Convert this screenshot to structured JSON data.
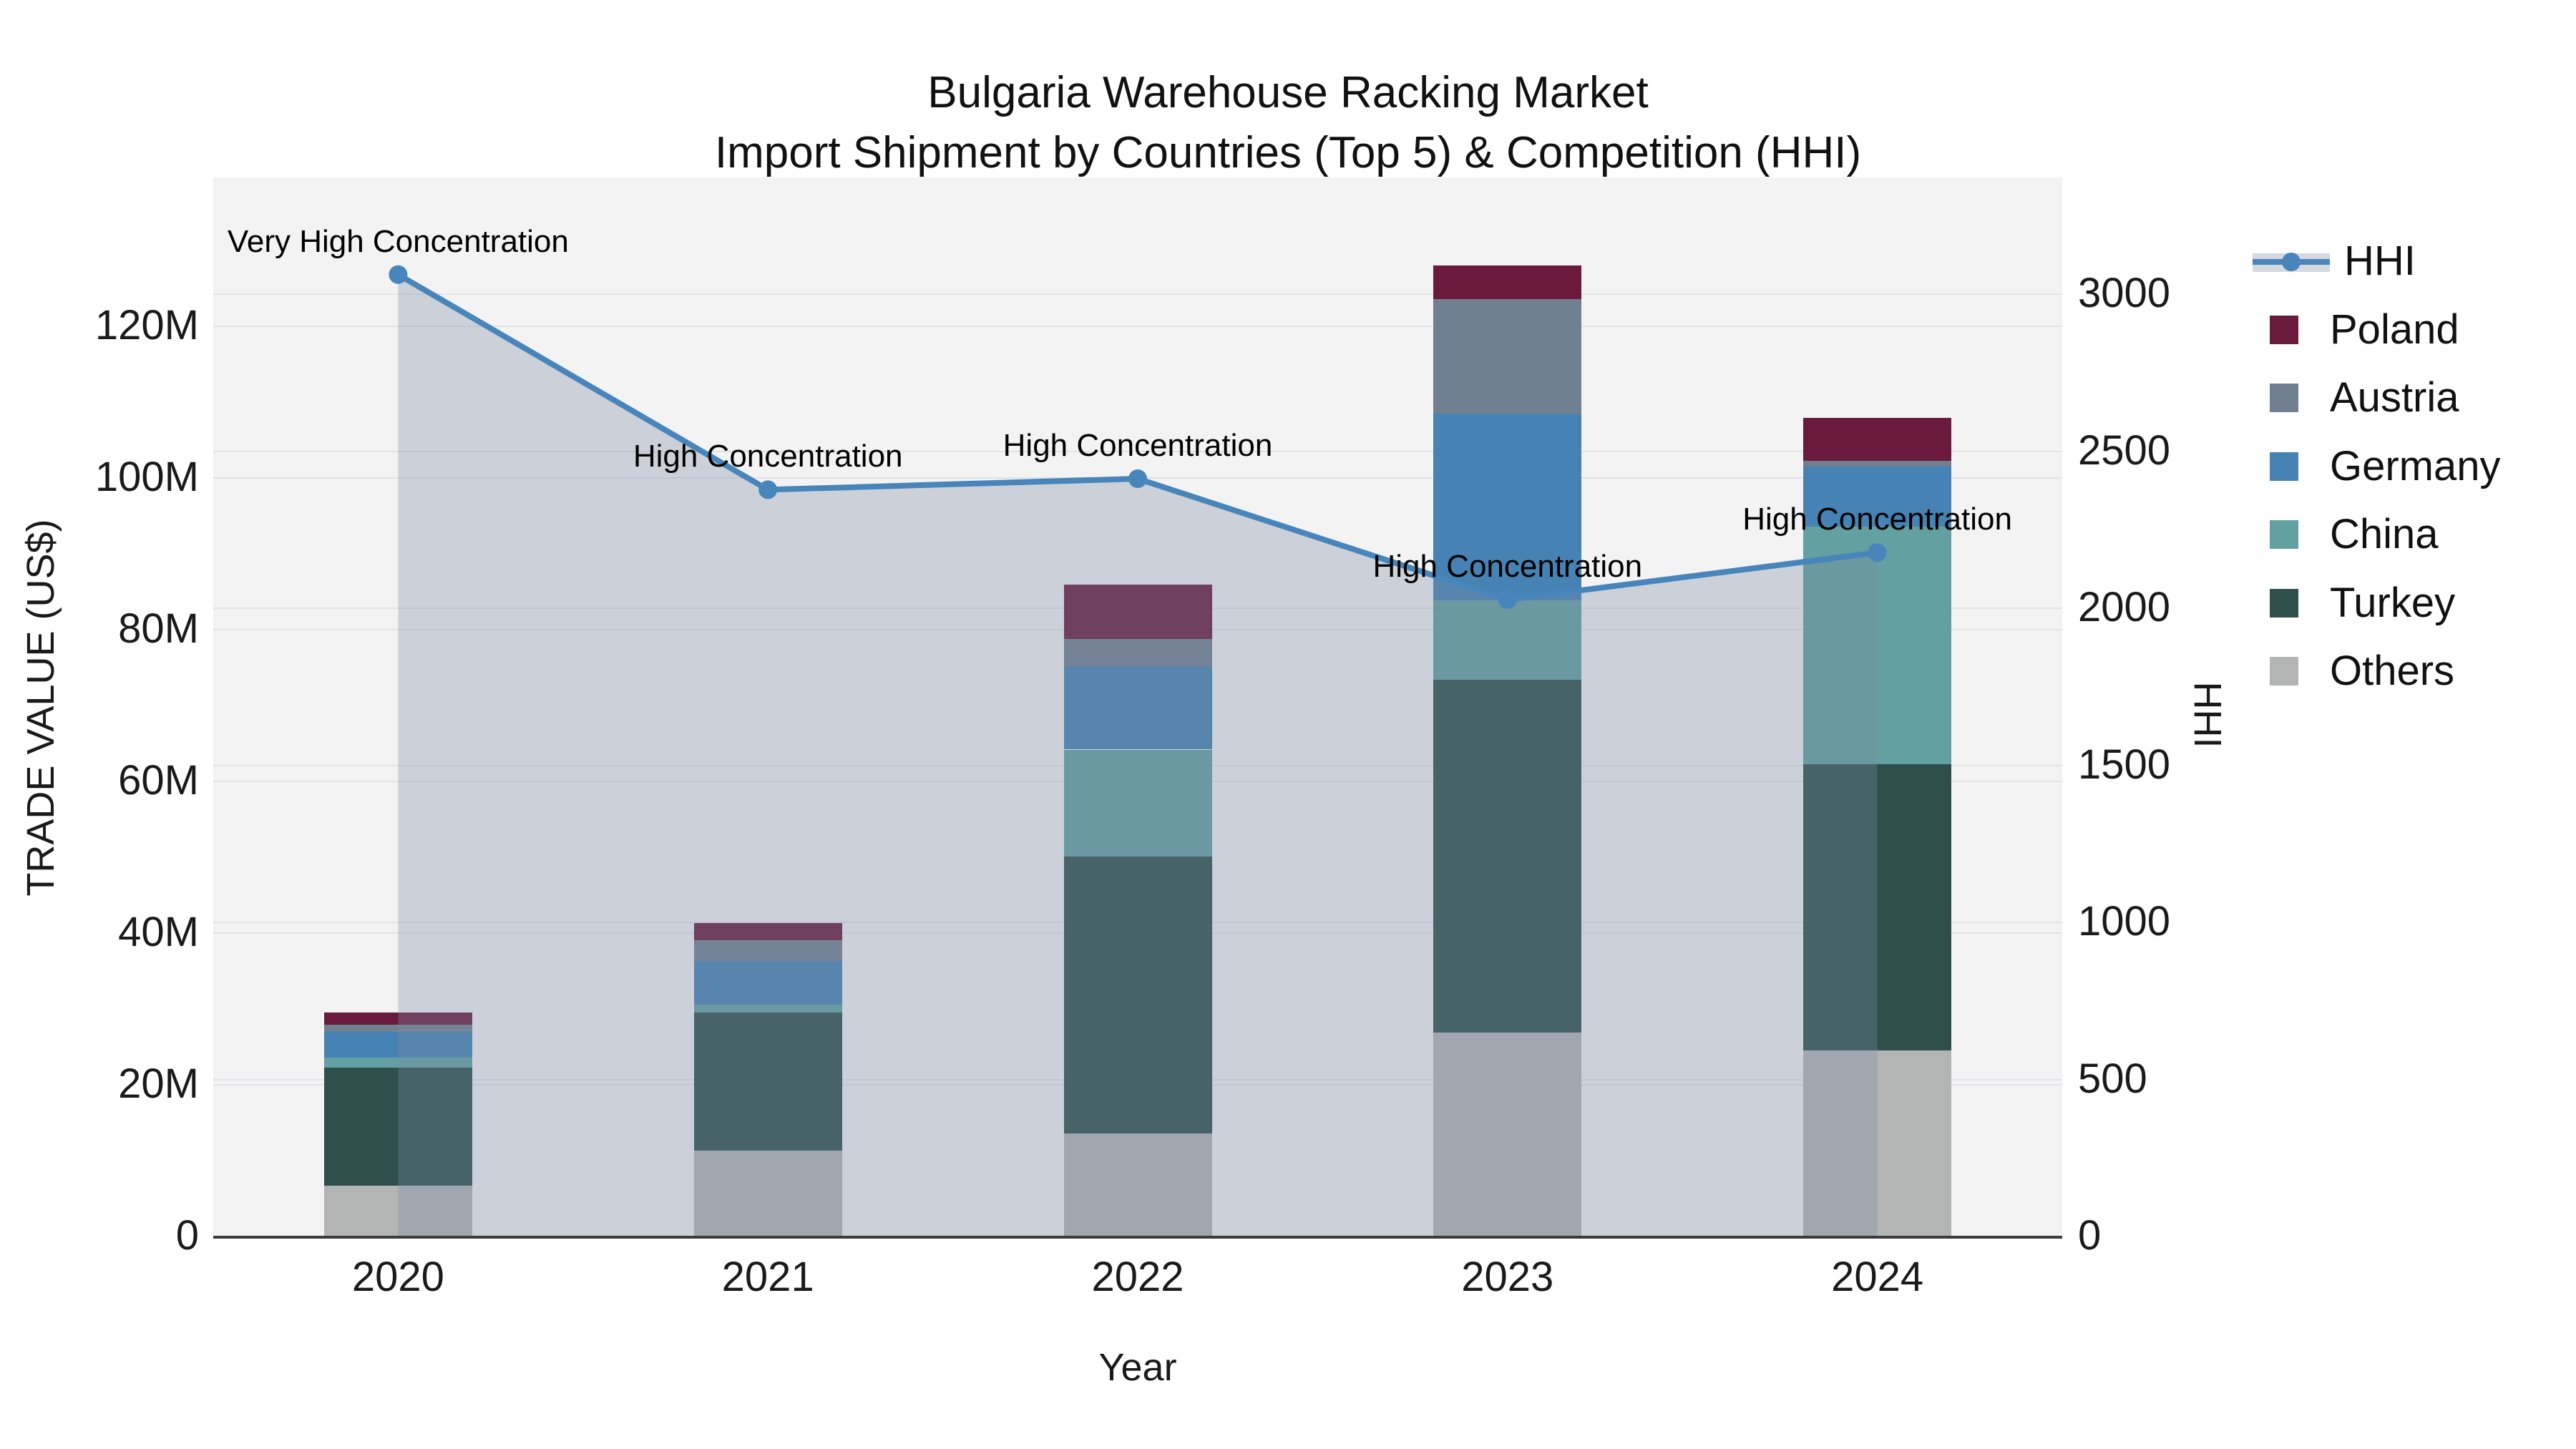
{
  "title": {
    "line1": "Bulgaria Warehouse Racking Market",
    "line2": "Import Shipment by Countries (Top 5) & Competition (HHI)"
  },
  "colors": {
    "hhi_line": "#4785BA",
    "area_fill": "rgba(124,140,165,0.33)",
    "plot_background": "#f3f3f4",
    "gridline": "#e2e2e6",
    "axis_line": "#3b3b3b",
    "poland": "#691A3D",
    "austria": "#708090",
    "germany": "#4682B4",
    "china": "#63A0A2",
    "turkey": "#2E4F4B",
    "others": "#B2B5B3"
  },
  "chart_data": {
    "type": "bar",
    "subtype": "stacked-bar-with-line",
    "title": "Bulgaria Warehouse Racking Market — Import Shipment by Countries (Top 5) & Competition (HHI)",
    "categories": [
      "2020",
      "2021",
      "2022",
      "2023",
      "2024"
    ],
    "bar_unit": "million US$",
    "series": [
      {
        "name": "Others",
        "color": "#B2B5B3",
        "values": [
          6.6,
          11.2,
          13.5,
          26.8,
          24.4
        ]
      },
      {
        "name": "Turkey",
        "color": "#2E4F4B",
        "values": [
          15.6,
          18.2,
          36.5,
          46.5,
          37.8
        ]
      },
      {
        "name": "China",
        "color": "#63A0A2",
        "values": [
          1.3,
          1.1,
          14.1,
          10.5,
          31.3
        ]
      },
      {
        "name": "Germany",
        "color": "#4682B4",
        "values": [
          3.4,
          5.7,
          11.0,
          24.6,
          7.9
        ]
      },
      {
        "name": "Austria",
        "color": "#708090",
        "values": [
          0.9,
          2.8,
          3.6,
          15.1,
          0.8
        ]
      },
      {
        "name": "Poland",
        "color": "#691A3D",
        "values": [
          1.6,
          2.2,
          7.2,
          4.4,
          5.6
        ]
      }
    ],
    "bar_totals": [
      29.4,
      41.2,
      85.9,
      127.9,
      107.8
    ],
    "line_series": {
      "name": "HHI",
      "color": "#4785BA",
      "values": [
        3060,
        2375,
        2410,
        2025,
        2175
      ],
      "annotations": [
        {
          "text": "Very High Concentration"
        },
        {
          "text": "High Concentration"
        },
        {
          "text": "High Concentration"
        },
        {
          "text": "High Concentration"
        },
        {
          "text": "High Concentration"
        }
      ]
    },
    "x": {
      "title": "Year"
    },
    "y_left": {
      "title": "TRADE VALUE (US$)",
      "tick_labels": [
        "0",
        "20M",
        "40M",
        "60M",
        "80M",
        "100M",
        "120M"
      ],
      "tick_values": [
        0,
        20,
        40,
        60,
        80,
        100,
        120
      ],
      "range": [
        0,
        139.5
      ]
    },
    "y_right": {
      "title": "HHI",
      "tick_labels": [
        "0",
        "500",
        "1000",
        "1500",
        "2000",
        "2500",
        "3000"
      ],
      "tick_values": [
        0,
        500,
        1000,
        1500,
        2000,
        2500,
        3000
      ],
      "range": [
        0,
        3370
      ]
    },
    "grid": true,
    "legend_position": "right"
  },
  "legend": {
    "items": [
      {
        "label": "HHI",
        "color": "#4785BA",
        "type": "line"
      },
      {
        "label": "Poland",
        "color": "#691A3D",
        "type": "square"
      },
      {
        "label": "Austria",
        "color": "#708090",
        "type": "square"
      },
      {
        "label": "Germany",
        "color": "#4682B4",
        "type": "square"
      },
      {
        "label": "China",
        "color": "#63A0A2",
        "type": "square"
      },
      {
        "label": "Turkey",
        "color": "#2E4F4B",
        "type": "square"
      },
      {
        "label": "Others",
        "color": "#B2B5B3",
        "type": "square"
      }
    ]
  }
}
